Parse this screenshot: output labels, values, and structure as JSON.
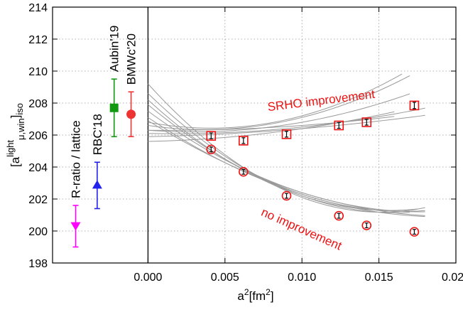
{
  "chart_data": {
    "type": "scatter",
    "title": "",
    "xlabel": {
      "base": "a",
      "sup1": "2",
      "mid": "[fm",
      "sup2": "2",
      "end": "]"
    },
    "ylabel": {
      "open": "[a",
      "sup": "light",
      "sub": "μ,win",
      "close": "]",
      "tail": "iso"
    },
    "xlim": [
      -0.0062,
      0.02
    ],
    "ylim": [
      198,
      214
    ],
    "x_ticks": [
      {
        "value": 0.0,
        "label": "0.000"
      },
      {
        "value": 0.005,
        "label": "0.005"
      },
      {
        "value": 0.01,
        "label": "0.010"
      },
      {
        "value": 0.015,
        "label": "0.015"
      },
      {
        "value": 0.02,
        "label": "0.020"
      }
    ],
    "y_ticks": [
      {
        "value": 198,
        "label": "198"
      },
      {
        "value": 200,
        "label": "200"
      },
      {
        "value": 202,
        "label": "202"
      },
      {
        "value": 204,
        "label": "204"
      },
      {
        "value": 206,
        "label": "206"
      },
      {
        "value": 208,
        "label": "208"
      },
      {
        "value": 210,
        "label": "210"
      },
      {
        "value": 212,
        "label": "212"
      },
      {
        "value": 214,
        "label": "214"
      }
    ],
    "grid": "dotted horizontal and vertical at tick positions",
    "reference_points": [
      {
        "label": "R-ratio / lattice",
        "x": -0.0047,
        "y": 200.3,
        "err": [
          199.0,
          201.6
        ],
        "color": "#ff00ff",
        "marker": "triangle-down"
      },
      {
        "label": "RBC'18",
        "x": -0.0033,
        "y": 202.9,
        "err": [
          201.4,
          204.3
        ],
        "color": "#2222ee",
        "marker": "triangle-up"
      },
      {
        "label": "Aubin'19",
        "x": -0.0022,
        "y": 207.7,
        "err": [
          205.9,
          209.5
        ],
        "color": "#119911",
        "marker": "square"
      },
      {
        "label": "BMWc'20",
        "x": -0.0011,
        "y": 207.3,
        "err": [
          205.9,
          208.7
        ],
        "color": "#ee3333",
        "marker": "circle"
      }
    ],
    "series": [
      {
        "name": "SRHO improvement",
        "marker": "open-square",
        "color": "#ee1111",
        "x": [
          0.0041,
          0.0062,
          0.009,
          0.0124,
          0.0142,
          0.0173
        ],
        "y": [
          205.95,
          205.65,
          206.05,
          206.6,
          206.8,
          207.85
        ],
        "err": [
          0.18,
          0.18,
          0.18,
          0.18,
          0.18,
          0.2
        ]
      },
      {
        "name": "no improvement",
        "marker": "open-circle",
        "color": "#ee1111",
        "x": [
          0.0041,
          0.0062,
          0.009,
          0.0124,
          0.0142,
          0.0173
        ],
        "y": [
          205.1,
          203.7,
          202.2,
          200.95,
          200.35,
          199.95
        ],
        "err": [
          0.15,
          0.15,
          0.15,
          0.15,
          0.15,
          0.15
        ]
      }
    ],
    "fit_curves_srho": [
      {
        "x": [
          0.0,
          0.017
        ],
        "c": [
          206.3,
          -0.7,
          1.2
        ]
      },
      {
        "x": [
          0.0,
          0.017
        ],
        "c": [
          206.6,
          -1.4,
          1.9
        ]
      },
      {
        "x": [
          0.0,
          0.016
        ],
        "c": [
          205.6,
          0.2,
          0.6
        ]
      },
      {
        "x": [
          0.0,
          0.018
        ],
        "c": [
          206.1,
          -0.2,
          0.6
        ]
      },
      {
        "x": [
          0.0,
          0.016
        ],
        "c": [
          206.3,
          -0.1,
          0.4
        ]
      },
      {
        "x": [
          0.0,
          0.018
        ],
        "c": [
          205.9,
          0.2,
          0.3
        ]
      },
      {
        "x": [
          0.0,
          0.0165
        ],
        "c": [
          206.8,
          -1.8,
          2.2
        ]
      }
    ],
    "fit_curves_none": [
      {
        "x": [
          0.0,
          0.018
        ],
        "c": [
          209.2,
          -10.6,
          3.5
        ]
      },
      {
        "x": [
          0.0,
          0.018
        ],
        "c": [
          207.9,
          -8.0,
          2.4
        ]
      },
      {
        "x": [
          0.0,
          0.018
        ],
        "c": [
          207.1,
          -6.5,
          1.7
        ]
      },
      {
        "x": [
          0.0,
          0.017
        ],
        "c": [
          208.6,
          -9.3,
          2.9
        ]
      },
      {
        "x": [
          0.0,
          0.018
        ],
        "c": [
          206.9,
          -6.0,
          1.5
        ]
      },
      {
        "x": [
          0.0,
          0.0175
        ],
        "c": [
          208.2,
          -8.8,
          2.8
        ]
      },
      {
        "x": [
          0.0,
          0.018
        ],
        "c": [
          207.5,
          -7.1,
          2.0
        ]
      }
    ],
    "annotations": [
      {
        "text": "SRHO improvement",
        "x": 0.0078,
        "y": 207.5,
        "angle": -7,
        "color": "#ee1111"
      },
      {
        "text": "no improvement",
        "x": 0.0073,
        "y": 201.0,
        "angle": 24,
        "color": "#ee1111"
      }
    ]
  }
}
